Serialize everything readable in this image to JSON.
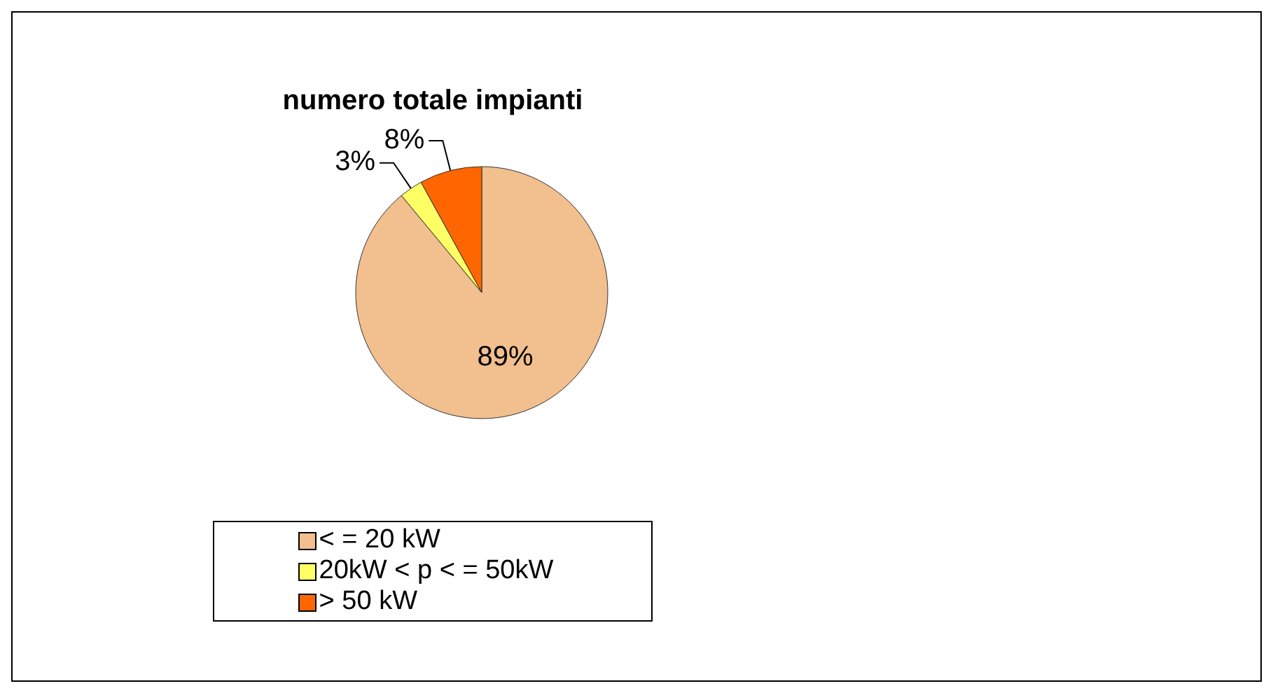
{
  "chart_data": {
    "type": "pie",
    "title": "numero totale impianti",
    "categories": [
      "< = 20 kW",
      "20kW < p < = 50kW",
      "> 50 kW"
    ],
    "values": [
      89,
      3,
      8
    ],
    "colors": [
      "#f2bf8e",
      "#ffff66",
      "#ff6600"
    ],
    "value_labels": [
      "89%",
      "3%",
      "8%"
    ],
    "legend": "bottom"
  }
}
